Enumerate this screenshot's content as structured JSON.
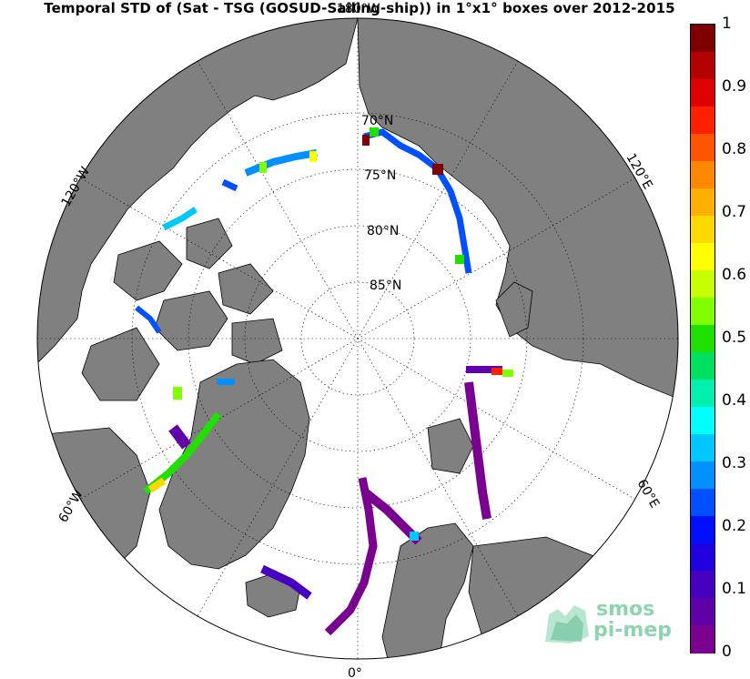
{
  "title": "Temporal STD of (Sat - TSG (GOSUD-Sailing-ship)) in 1°x1° boxes over 2012-2015",
  "colorbar": {
    "ticks": [
      "1",
      "0.9",
      "0.8",
      "0.7",
      "0.6",
      "0.5",
      "0.4",
      "0.3",
      "0.2",
      "0.1",
      "0"
    ],
    "colors": [
      "#7f0000",
      "#b30000",
      "#e00000",
      "#ff2000",
      "#ff5500",
      "#ff8800",
      "#ffb000",
      "#ffd800",
      "#ffff00",
      "#c8ff00",
      "#80ff00",
      "#20e000",
      "#00e060",
      "#00f0b0",
      "#00ffff",
      "#00c8ff",
      "#0090ff",
      "#0050ff",
      "#0010ff",
      "#2000e0",
      "#4800c0",
      "#6000a8",
      "#7a0090"
    ]
  },
  "lat_labels": [
    "70°N",
    "75°N",
    "80°N",
    "85°N"
  ],
  "lon_labels": {
    "top": "180°W",
    "bottom": "0°",
    "left_upper": "120°W",
    "left_lower": "60°W",
    "right_upper": "120°E",
    "right_lower": "60°E"
  },
  "logo": {
    "line1": "smos",
    "line2": "pi-mep"
  }
}
